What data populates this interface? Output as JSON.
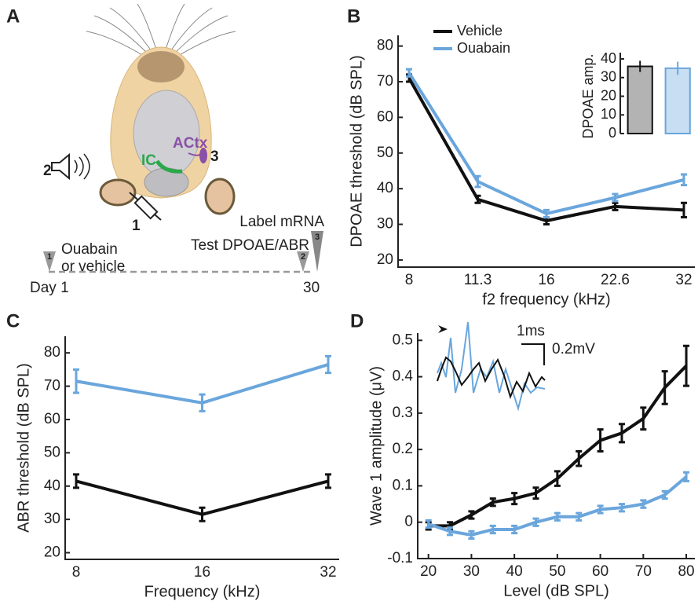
{
  "panels": [
    "A",
    "B",
    "C",
    "D"
  ],
  "diagram": {
    "labels": {
      "actx": "ACtx",
      "ic": "IC",
      "step3": "3",
      "step2": "2",
      "step1": "1"
    },
    "timeline": {
      "label_mrna": "Label mRNA",
      "test": "Test DPOAE/ABR",
      "ouabain": "Ouabain",
      "vehicle": "or vehicle",
      "start": "Day 1",
      "end": "30",
      "markers": [
        "1",
        "2",
        "3"
      ]
    }
  },
  "chart_data": [
    {
      "type": "line",
      "xlabel": "f2 frequency (kHz)",
      "ylabel": "DPOAE threshold (dB SPL)",
      "categories": [
        "8",
        "11.3",
        "16",
        "22.6",
        "32"
      ],
      "ylim": [
        18,
        83
      ],
      "yticks": [
        20,
        30,
        40,
        50,
        60,
        70,
        80
      ],
      "legend": "upper left",
      "series": [
        {
          "name": "Vehicle",
          "color": "#111111",
          "values": [
            71,
            37,
            31,
            35,
            34
          ],
          "errors": [
            1,
            1,
            1,
            1,
            2
          ]
        },
        {
          "name": "Ouabain",
          "color": "#6aa6dc",
          "values": [
            72.5,
            42,
            33,
            37.5,
            42.5
          ],
          "errors": [
            1,
            1.5,
            1,
            1,
            1.5
          ]
        }
      ]
    },
    {
      "type": "bar",
      "ylabel": "DPOAE amp.",
      "ylim": [
        0,
        40
      ],
      "yticks": [
        0,
        10,
        20,
        30,
        40
      ],
      "values": [
        36,
        35
      ],
      "errors": [
        3,
        3.5
      ],
      "colors": [
        "#b3b3b3",
        "#c8def2"
      ],
      "edge_colors": [
        "#111111",
        "#6aa6dc"
      ]
    },
    {
      "type": "line",
      "xlabel": "Frequency (kHz)",
      "ylabel": "ABR threshold (dB SPL)",
      "categories": [
        "8",
        "16",
        "32"
      ],
      "ylim": [
        18,
        85
      ],
      "yticks": [
        20,
        30,
        40,
        50,
        60,
        70,
        80
      ],
      "series": [
        {
          "color": "#6aa6dc",
          "values": [
            71.5,
            65,
            76.5
          ],
          "errors": [
            3.5,
            2.5,
            2.5
          ]
        },
        {
          "color": "#111111",
          "values": [
            41.5,
            31.5,
            41.5
          ],
          "errors": [
            2,
            2,
            2
          ]
        }
      ]
    },
    {
      "type": "line",
      "xlabel": "Level (dB SPL)",
      "ylabel": "Wave 1 amplitude (μV)",
      "x": [
        20,
        25,
        30,
        35,
        40,
        45,
        50,
        55,
        60,
        65,
        70,
        75,
        80
      ],
      "xlim": [
        17.5,
        82
      ],
      "xticks": [
        20,
        30,
        40,
        50,
        60,
        70,
        80
      ],
      "ylim": [
        -0.1,
        0.52
      ],
      "yticks": [
        -0.1,
        0,
        0.1,
        0.2,
        0.3,
        0.4,
        0.5
      ],
      "scale_bar": {
        "time": "1ms",
        "amplitude": "0.2mV"
      },
      "series": [
        {
          "color": "#111111",
          "values": [
            -0.01,
            -0.01,
            0.02,
            0.055,
            0.065,
            0.08,
            0.12,
            0.175,
            0.225,
            0.245,
            0.285,
            0.37,
            0.43
          ],
          "errors": [
            0.01,
            0.01,
            0.01,
            0.01,
            0.015,
            0.015,
            0.02,
            0.02,
            0.03,
            0.025,
            0.03,
            0.045,
            0.055
          ]
        },
        {
          "color": "#6aa6dc",
          "values": [
            -0.005,
            -0.025,
            -0.035,
            -0.02,
            -0.02,
            0,
            0.015,
            0.015,
            0.035,
            0.04,
            0.05,
            0.075,
            0.125
          ],
          "errors": [
            0.01,
            0.01,
            0.01,
            0.01,
            0.01,
            0.01,
            0.01,
            0.01,
            0.01,
            0.01,
            0.01,
            0.01,
            0.012
          ]
        }
      ]
    }
  ]
}
